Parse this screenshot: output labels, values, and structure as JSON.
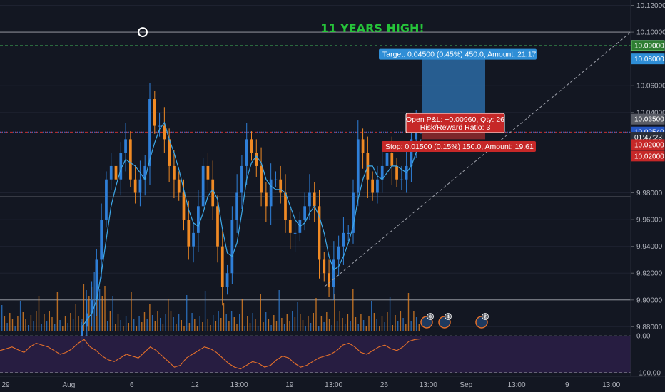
{
  "headline": "11 YEARS HIGH!",
  "colors": {
    "background": "#131722",
    "up": "#2f7fd8",
    "down": "#f08a24",
    "ma": "#3da8e8",
    "headline": "#26c43a",
    "target_zone": "#2b6aa3",
    "stop_zone": "#c53030",
    "target_label": "#2f8ed6",
    "stop_label": "#c62828",
    "rsi_line": "#e5702a",
    "rsi_band": "#2a1e45",
    "trend_line": "#9ea1ab",
    "level_line": "#c8cad0",
    "target_dashed": "#3a9a4f",
    "stop_dashed": "#c53030",
    "current_dotted": "#3a6fd8"
  },
  "trade": {
    "target_label": "Target: 0.04500 (0.45%) 450.0, Amount: 21.17",
    "pnl_line1": "Open P&L: −0.00960, Qty: 26",
    "pnl_line2": "Risk/Reward Ratio: 3",
    "stop_label": "Stop: 0.01500 (0.15%) 150.0, Amount: 19.61",
    "entry": 10.035,
    "target": 10.08,
    "stop": 10.02
  },
  "price_axis": {
    "ticks": [
      "10.12000",
      "10.10000",
      "10.06000",
      "10.04000",
      "9.98000",
      "9.96000",
      "9.94000",
      "9.92000",
      "9.90000",
      "9.88000"
    ],
    "tick_values": [
      10.12,
      10.1,
      10.06,
      10.04,
      9.98,
      9.96,
      9.94,
      9.92,
      9.9,
      9.88
    ],
    "tags": [
      {
        "text": "10.09000",
        "value": 10.09,
        "color": "#2e7d32",
        "border": "#6ccf73"
      },
      {
        "text": "10.08000",
        "value": 10.08,
        "color": "#2f8ed6",
        "border": "#2f8ed6"
      },
      {
        "text": "10.03500",
        "value": 10.035,
        "color": "#5a5d66",
        "border": "#5a5d66"
      },
      {
        "text": "10.02540",
        "value": 10.0254,
        "color": "#2657c4",
        "border": "#2657c4"
      },
      {
        "text": "01:47:23",
        "value": 10.0215,
        "color": "#2a2e39",
        "border": "#2a2e39"
      },
      {
        "text": "10.02000",
        "value": 10.016,
        "color": "#c62828",
        "border": "#c62828"
      },
      {
        "text": "10.02000",
        "value": 10.0075,
        "color": "#c62828",
        "border": "#c62828"
      }
    ],
    "min": 9.877,
    "max": 10.124
  },
  "rsi_axis": {
    "ticks": [
      "0.00",
      "-100.00"
    ],
    "tick_values": [
      0,
      -100
    ],
    "min": -110,
    "max": 10
  },
  "time_axis": {
    "labels": [
      "29",
      "Aug",
      "6",
      "12",
      "13:00",
      "19",
      "13:00",
      "26",
      "13:00",
      "Sep",
      "13:00",
      "9",
      "13:00"
    ],
    "positions": [
      0,
      10,
      20,
      30,
      37,
      45,
      52,
      60,
      67,
      73,
      81,
      89,
      96
    ]
  },
  "levels": [
    10.1,
    9.977,
    9.9
  ],
  "events": [
    "6",
    "4",
    "2"
  ],
  "chart_data": {
    "type": "candlestick",
    "title": "11 YEARS HIGH!",
    "y_range": [
      9.877,
      10.124
    ],
    "high_marker": 10.1,
    "x": [
      0,
      1,
      2,
      3,
      4,
      5,
      6,
      7,
      8,
      9,
      10,
      11,
      12,
      13,
      14,
      15,
      16,
      17,
      18,
      19,
      20,
      21,
      22,
      23,
      24,
      25,
      26,
      27,
      28,
      29,
      30,
      31,
      32,
      33,
      34,
      35,
      36,
      37,
      38,
      39,
      40,
      41,
      42,
      43,
      44,
      45,
      46,
      47,
      48,
      49,
      50,
      51,
      52,
      53,
      54,
      55,
      56,
      57,
      58,
      59,
      60,
      61,
      62,
      63,
      64,
      65,
      66,
      67,
      68,
      69,
      70
    ],
    "close": [
      9.88,
      9.89,
      9.9,
      9.93,
      9.96,
      9.99,
      10.0,
      9.99,
      10.01,
      10.02,
      9.99,
      9.98,
      9.99,
      10.0,
      10.05,
      10.03,
      10.03,
      10.02,
      10.0,
      9.99,
      9.98,
      9.96,
      9.94,
      9.95,
      9.97,
      10.0,
      9.99,
      9.97,
      9.94,
      9.91,
      9.92,
      9.96,
      9.98,
      10.0,
      10.02,
      10.01,
      10.0,
      9.98,
      9.97,
      9.99,
      9.99,
      9.98,
      9.96,
      9.95,
      9.95,
      9.96,
      9.97,
      9.98,
      9.97,
      9.93,
      9.92,
      9.91,
      9.93,
      9.94,
      9.95,
      9.95,
      9.98,
      10.02,
      10.01,
      9.99,
      9.98,
      9.99,
      10.0,
      10.01,
      10.0,
      9.99,
      9.99,
      10.0,
      10.02,
      10.03,
      10.03
    ],
    "rsi": [
      -40,
      -35,
      -30,
      -38,
      -45,
      -30,
      -20,
      -25,
      -30,
      -40,
      -50,
      -45,
      -35,
      -20,
      -10,
      -30,
      -40,
      -55,
      -65,
      -70,
      -60,
      -50,
      -55,
      -60,
      -45,
      -30,
      -40,
      -55,
      -70,
      -85,
      -80,
      -60,
      -50,
      -40,
      -30,
      -35,
      -45,
      -60,
      -75,
      -85,
      -90,
      -80,
      -70,
      -75,
      -85,
      -80,
      -65,
      -55,
      -60,
      -75,
      -85,
      -80,
      -70,
      -60,
      -55,
      -50,
      -40,
      -25,
      -20,
      -30,
      -45,
      -50,
      -40,
      -30,
      -25,
      -35,
      -40,
      -30,
      -15,
      -10,
      -8
    ],
    "ma_label": "",
    "overbought": 0,
    "oversold": -100
  }
}
